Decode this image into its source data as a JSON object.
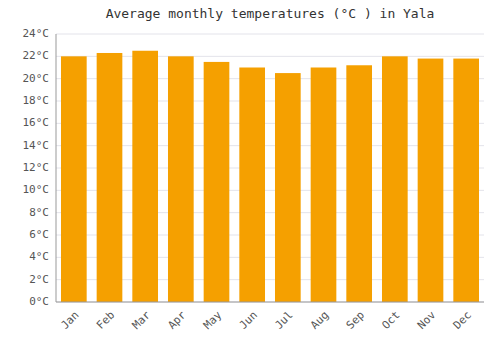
{
  "chart_data": {
    "type": "bar",
    "title": "Average monthly temperatures (°C ) in Yala",
    "categories": [
      "Jan",
      "Feb",
      "Mar",
      "Apr",
      "May",
      "Jun",
      "Jul",
      "Aug",
      "Sep",
      "Oct",
      "Nov",
      "Dec"
    ],
    "values": [
      22.0,
      22.3,
      22.5,
      22.0,
      21.5,
      21.0,
      20.5,
      21.0,
      21.2,
      22.0,
      21.8,
      21.8
    ],
    "color": "#F5A000",
    "ylim": [
      0,
      24
    ],
    "yticks": [
      {
        "value": 0,
        "label": "0°C"
      },
      {
        "value": 2,
        "label": "2°C"
      },
      {
        "value": 4,
        "label": "4°C"
      },
      {
        "value": 6,
        "label": "6°C"
      },
      {
        "value": 8,
        "label": "8°C"
      },
      {
        "value": 10,
        "label": "10°C"
      },
      {
        "value": 12,
        "label": "12°C"
      },
      {
        "value": 14,
        "label": "14°C"
      },
      {
        "value": 16,
        "label": "16°C"
      },
      {
        "value": 18,
        "label": "18°C"
      },
      {
        "value": 20,
        "label": "20°C"
      },
      {
        "value": 22,
        "label": "22°C"
      },
      {
        "value": 24,
        "label": "24°C"
      }
    ],
    "grid": true
  }
}
